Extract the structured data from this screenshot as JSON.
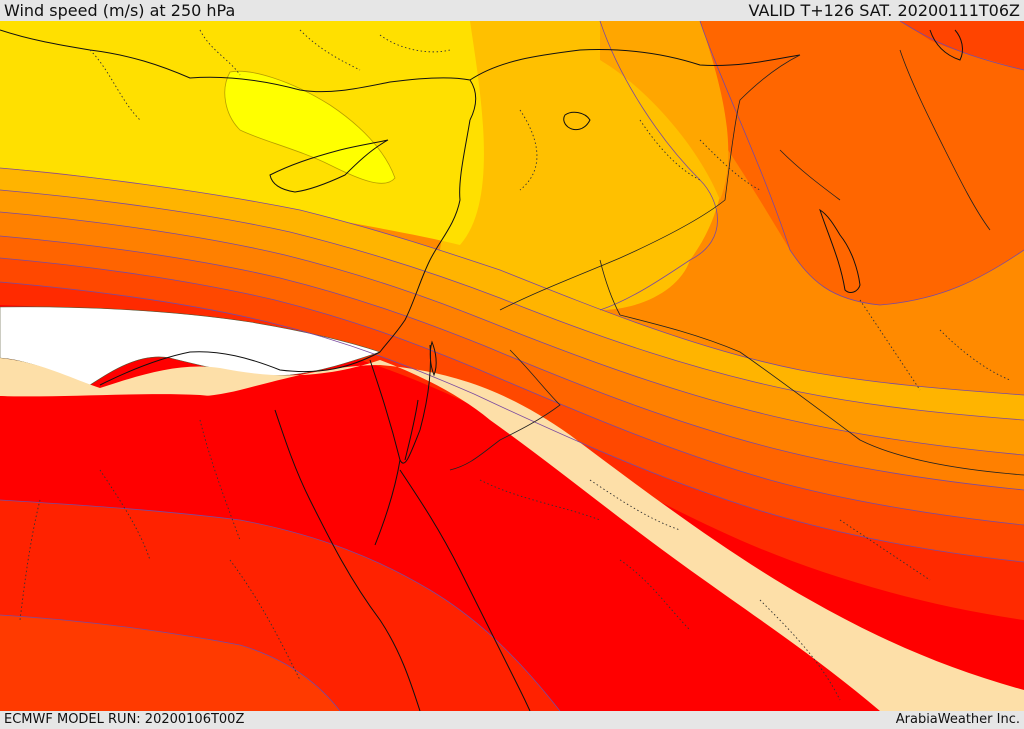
{
  "header": {
    "title": "Wind speed (m/s) at 250 hPa",
    "valid_time": "VALID T+126 SAT. 20200111T06Z"
  },
  "footer": {
    "model_run": "ECMWF MODEL RUN: 20200106T00Z",
    "credit": "ArabiaWeather Inc."
  },
  "map": {
    "variable": "wind speed",
    "level": "250 hPa",
    "units": "m/s",
    "color_bands": [
      "#ffff00",
      "#ffe000",
      "#ffc400",
      "#ffa800",
      "#ff8800",
      "#ff6600",
      "#ff4400",
      "#ff2200",
      "#ff0000",
      "#fddfa8",
      "#ffffff"
    ]
  }
}
